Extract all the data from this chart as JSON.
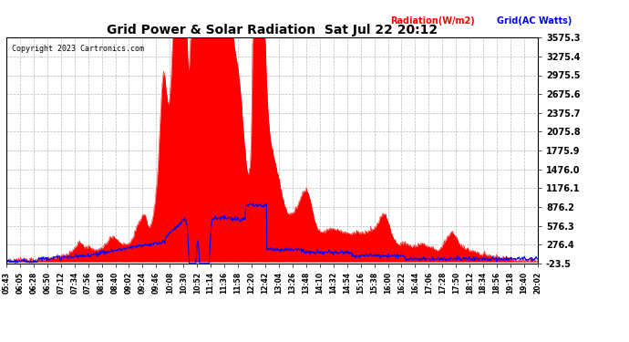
{
  "title": "Grid Power & Solar Radiation  Sat Jul 22 20:12",
  "copyright": "Copyright 2023 Cartronics.com",
  "legend_radiation": "Radiation(W/m2)",
  "legend_grid": "Grid(AC Watts)",
  "yticks": [
    3575.3,
    3275.4,
    2975.5,
    2675.6,
    2375.7,
    2075.8,
    1775.9,
    1476.0,
    1176.1,
    876.2,
    576.3,
    276.4,
    -23.5
  ],
  "ymin": -23.5,
  "ymax": 3575.3,
  "bg_color": "#ffffff",
  "plot_bg_color": "#ffffff",
  "grid_color": "#bbbbbb",
  "radiation_color": "#ff0000",
  "grid_ac_color": "#0000ff",
  "xtick_labels": [
    "05:43",
    "06:05",
    "06:28",
    "06:50",
    "07:12",
    "07:34",
    "07:56",
    "08:18",
    "08:40",
    "09:02",
    "09:24",
    "09:46",
    "10:08",
    "10:30",
    "10:52",
    "11:14",
    "11:36",
    "11:58",
    "12:20",
    "12:42",
    "13:04",
    "13:26",
    "13:48",
    "14:10",
    "14:32",
    "14:54",
    "15:16",
    "15:38",
    "16:00",
    "16:22",
    "16:44",
    "17:06",
    "17:28",
    "17:50",
    "18:12",
    "18:34",
    "18:56",
    "19:18",
    "19:40",
    "20:02"
  ]
}
